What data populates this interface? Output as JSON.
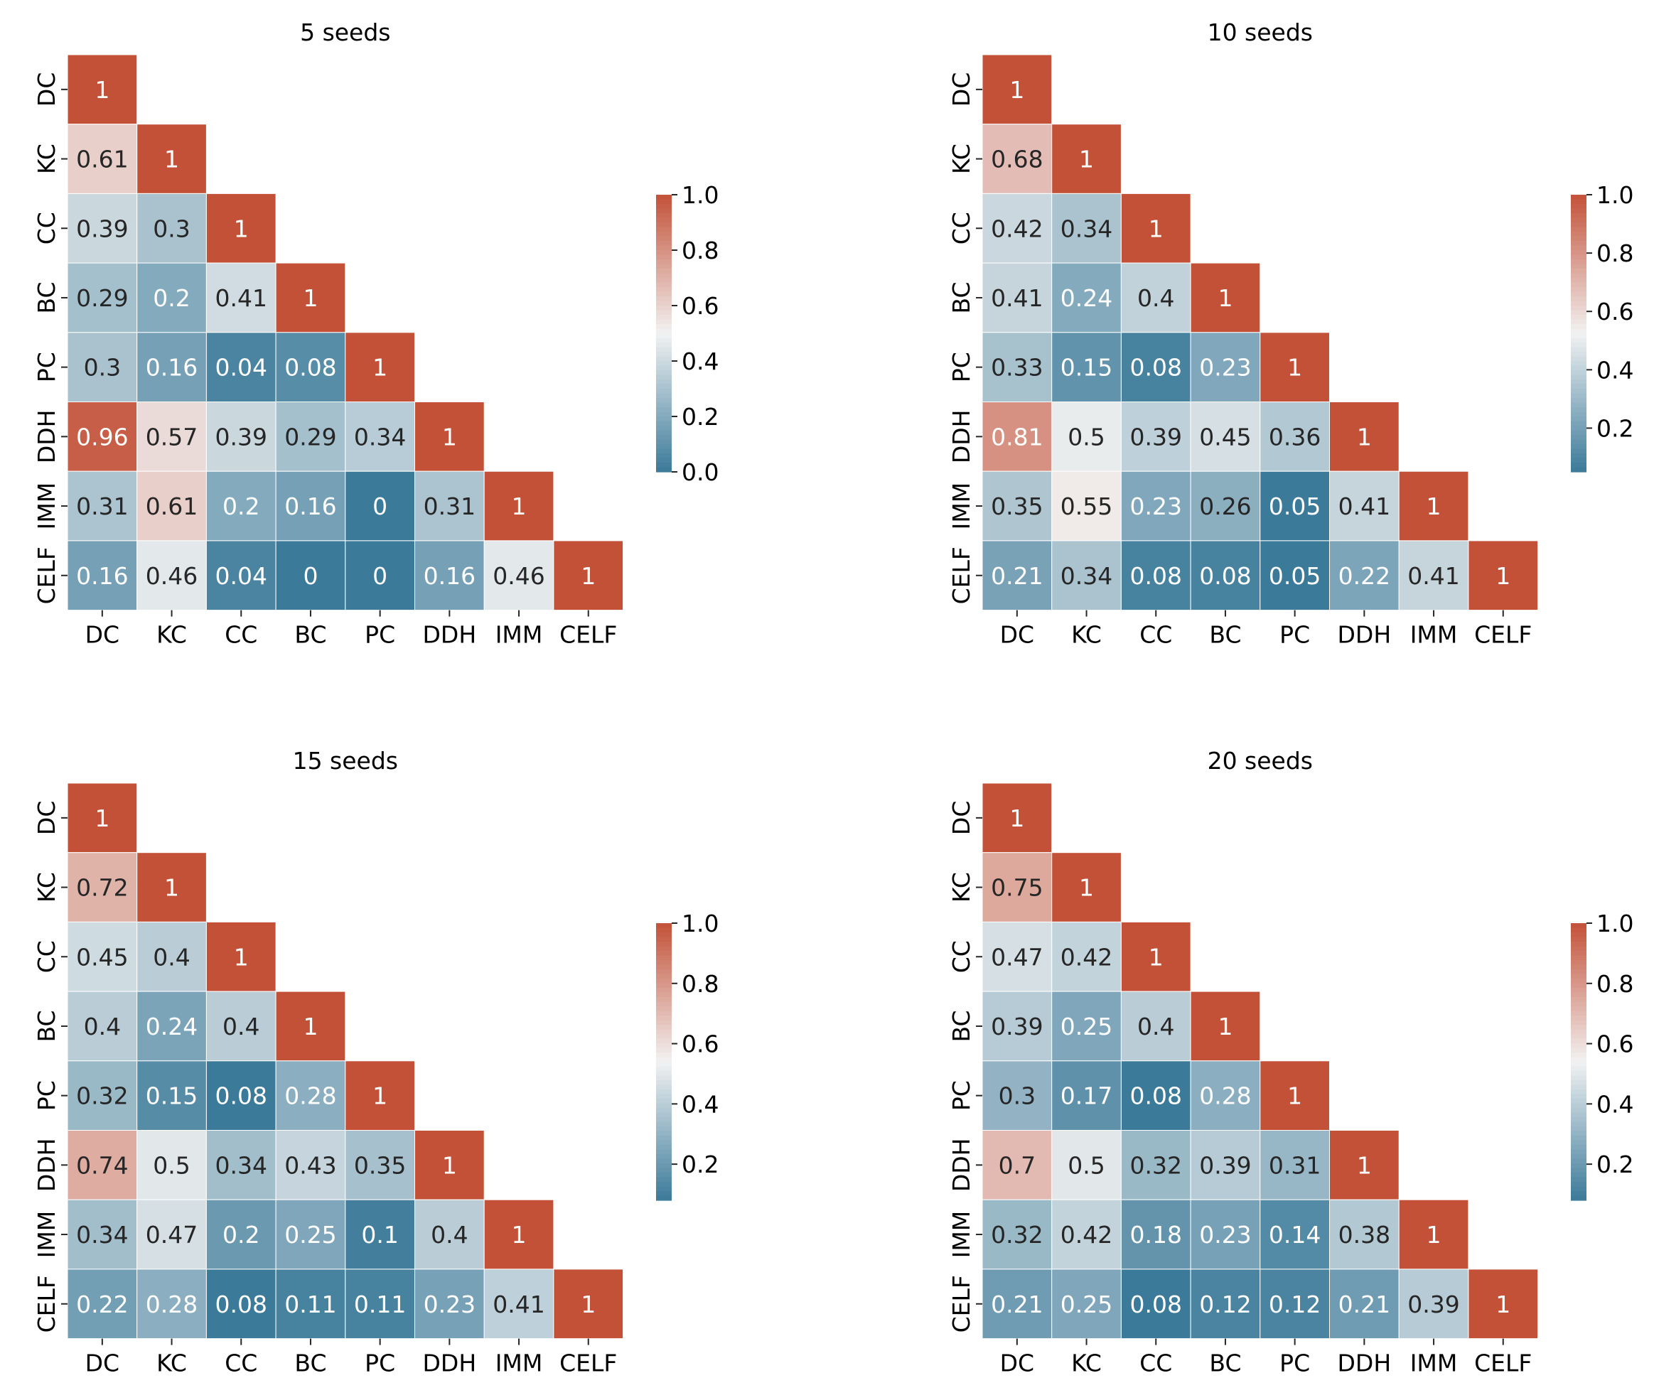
{
  "chart_data": [
    {
      "type": "heatmap",
      "title": "5 seeds",
      "labels": [
        "DC",
        "KC",
        "CC",
        "BC",
        "PC",
        "DDH",
        "IMM",
        "CELF"
      ],
      "matrix": [
        [
          1
        ],
        [
          0.61,
          1
        ],
        [
          0.39,
          0.3,
          1
        ],
        [
          0.29,
          0.2,
          0.41,
          1
        ],
        [
          0.3,
          0.16,
          0.04,
          0.08,
          1
        ],
        [
          0.96,
          0.57,
          0.39,
          0.29,
          0.34,
          1
        ],
        [
          0.31,
          0.61,
          0.2,
          0.16,
          0,
          0.31,
          1
        ],
        [
          0.16,
          0.46,
          0.04,
          0,
          0,
          0.16,
          0.46,
          1
        ]
      ],
      "colorbar": {
        "vmin": 0,
        "vmax": 1,
        "ticks": [
          "0.0",
          "0.2",
          "0.4",
          "0.6",
          "0.8",
          "1.0"
        ]
      }
    },
    {
      "type": "heatmap",
      "title": "10 seeds",
      "labels": [
        "DC",
        "KC",
        "CC",
        "BC",
        "PC",
        "DDH",
        "IMM",
        "CELF"
      ],
      "matrix": [
        [
          1
        ],
        [
          0.68,
          1
        ],
        [
          0.42,
          0.34,
          1
        ],
        [
          0.41,
          0.24,
          0.4,
          1
        ],
        [
          0.33,
          0.15,
          0.08,
          0.23,
          1
        ],
        [
          0.81,
          0.5,
          0.39,
          0.45,
          0.36,
          1
        ],
        [
          0.35,
          0.55,
          0.23,
          0.26,
          0.05,
          0.41,
          1
        ],
        [
          0.21,
          0.34,
          0.08,
          0.08,
          0.05,
          0.22,
          0.41,
          1
        ]
      ],
      "colorbar": {
        "vmin": 0.05,
        "vmax": 1,
        "ticks": [
          "0.2",
          "0.4",
          "0.6",
          "0.8",
          "1.0"
        ]
      }
    },
    {
      "type": "heatmap",
      "title": "15 seeds",
      "labels": [
        "DC",
        "KC",
        "CC",
        "BC",
        "PC",
        "DDH",
        "IMM",
        "CELF"
      ],
      "matrix": [
        [
          1
        ],
        [
          0.72,
          1
        ],
        [
          0.45,
          0.4,
          1
        ],
        [
          0.4,
          0.24,
          0.4,
          1
        ],
        [
          0.32,
          0.15,
          0.08,
          0.28,
          1
        ],
        [
          0.74,
          0.5,
          0.34,
          0.43,
          0.35,
          1
        ],
        [
          0.34,
          0.47,
          0.2,
          0.25,
          0.1,
          0.4,
          1
        ],
        [
          0.22,
          0.28,
          0.08,
          0.11,
          0.11,
          0.23,
          0.41,
          1
        ]
      ],
      "colorbar": {
        "vmin": 0.08,
        "vmax": 1,
        "ticks": [
          "0.2",
          "0.4",
          "0.6",
          "0.8",
          "1.0"
        ]
      }
    },
    {
      "type": "heatmap",
      "title": "20 seeds",
      "labels": [
        "DC",
        "KC",
        "CC",
        "BC",
        "PC",
        "DDH",
        "IMM",
        "CELF"
      ],
      "matrix": [
        [
          1
        ],
        [
          0.75,
          1
        ],
        [
          0.47,
          0.42,
          1
        ],
        [
          0.39,
          0.25,
          0.4,
          1
        ],
        [
          0.3,
          0.17,
          0.08,
          0.28,
          1
        ],
        [
          0.7,
          0.5,
          0.32,
          0.39,
          0.31,
          1
        ],
        [
          0.32,
          0.42,
          0.18,
          0.23,
          0.14,
          0.38,
          1
        ],
        [
          0.21,
          0.25,
          0.08,
          0.12,
          0.12,
          0.21,
          0.39,
          1
        ]
      ],
      "colorbar": {
        "vmin": 0.08,
        "vmax": 1,
        "ticks": [
          "0.2",
          "0.4",
          "0.6",
          "0.8",
          "1.0"
        ]
      }
    }
  ],
  "colors": {
    "low": "#3b7a99",
    "mid": "#f2f2f2",
    "high": "#c35138"
  }
}
